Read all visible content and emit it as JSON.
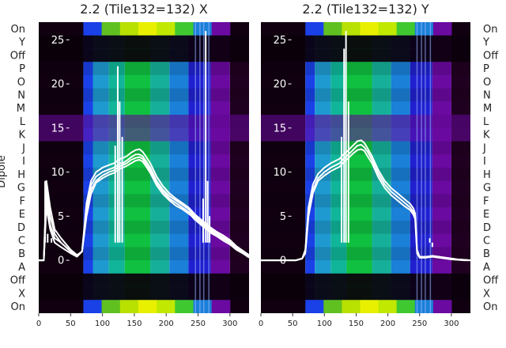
{
  "chart_data": {
    "type": "heatmap",
    "dipole_axis": {
      "label": "Dipole",
      "tick_labels": [
        "On",
        "Y",
        "Off",
        "P",
        "O",
        "N",
        "M",
        "L",
        "K",
        "J",
        "I",
        "H",
        "G",
        "F",
        "E",
        "D",
        "C",
        "B",
        "A",
        "Off",
        "X",
        "On"
      ]
    },
    "x_axis": {
      "range": [
        0,
        330
      ],
      "ticks": [
        0,
        50,
        100,
        150,
        200,
        250,
        300
      ]
    },
    "overlay_axis": {
      "range": [
        -6,
        27
      ],
      "ticks": [
        0,
        5,
        10,
        15,
        20,
        25
      ]
    },
    "panels": [
      {
        "title": "2.2 (Tile132=132) X",
        "overlay_series": [
          {
            "x": [
              0,
              8,
              12,
              18,
              25,
              35,
              50,
              60,
              68,
              75,
              82,
              90,
              100,
              110,
              118,
              124,
              128,
              132,
              138,
              145,
              152,
              158,
              163,
              168,
              175,
              185,
              195,
              205,
              215,
              225,
              235,
              240,
              245,
              250,
              255,
              258,
              262,
              265,
              270,
              280,
              290,
              300,
              310,
              320,
              330
            ],
            "y": [
              0,
              0,
              8,
              5,
              3,
              2,
              1,
              0.5,
              1,
              6,
              8.5,
              9.5,
              10,
              10.3,
              10.5,
              10.8,
              11,
              11,
              11.3,
              11.7,
              12,
              12,
              11.8,
              11.3,
              10.5,
              9,
              8,
              7.3,
              6.8,
              6.3,
              5.8,
              5.4,
              5,
              4.7,
              4.4,
              4.2,
              4,
              3.8,
              3.5,
              3,
              2.6,
              2.2,
              1.5,
              1,
              0.5
            ]
          },
          {
            "x": [
              0,
              8,
              12,
              18,
              25,
              35,
              50,
              60,
              68,
              75,
              82,
              90,
              100,
              110,
              118,
              124,
              128,
              132,
              138,
              145,
              152,
              158,
              163,
              168,
              175,
              185,
              195,
              205,
              215,
              225,
              235,
              240,
              245,
              250,
              255,
              258,
              262,
              265,
              270,
              280,
              290,
              300,
              310,
              320,
              330
            ],
            "y": [
              0,
              0,
              7,
              4,
              2.5,
              2,
              1,
              0.5,
              1,
              5.5,
              8,
              9,
              9.6,
              10,
              10.2,
              10.5,
              10.7,
              10.8,
              11,
              11.4,
              11.6,
              11.7,
              11.5,
              11,
              10.2,
              8.8,
              7.8,
              7,
              6.5,
              6,
              5.5,
              5.2,
              4.8,
              4.5,
              4.2,
              4,
              3.8,
              3.6,
              3.3,
              2.8,
              2.4,
              2,
              1.4,
              0.9,
              0.4
            ]
          },
          {
            "x": [
              0,
              8,
              12,
              18,
              25,
              35,
              50,
              60,
              68,
              75,
              82,
              90,
              100,
              110,
              118,
              124,
              128,
              132,
              138,
              145,
              152,
              158,
              163,
              168,
              175,
              185,
              195,
              205,
              215,
              225,
              235,
              240,
              245,
              250,
              255,
              258,
              262,
              265,
              270,
              280,
              290,
              300,
              310,
              320,
              330
            ],
            "y": [
              0,
              0,
              6,
              3.5,
              2,
              1.5,
              0.8,
              0.4,
              1,
              5,
              7.5,
              8.8,
              9.3,
              9.7,
              9.9,
              10.2,
              10.4,
              10.5,
              10.7,
              11,
              11.3,
              11.4,
              11.2,
              10.7,
              9.9,
              8.5,
              7.5,
              6.8,
              6.2,
              5.8,
              5.3,
              5,
              4.6,
              4.3,
              4,
              3.8,
              3.6,
              3.4,
              3.1,
              2.7,
              2.2,
              1.8,
              1.2,
              0.8,
              0.3
            ]
          },
          {
            "x": [
              0,
              8,
              12,
              18,
              25,
              35,
              50,
              60,
              68,
              75,
              82,
              90,
              100,
              110,
              118,
              124,
              128,
              132,
              138,
              145,
              152,
              158,
              163,
              168,
              175,
              185,
              195,
              205,
              215,
              225,
              235,
              240,
              245,
              250,
              255,
              258,
              262,
              265,
              270,
              280,
              290,
              300,
              310,
              320,
              330
            ],
            "y": [
              0,
              0,
              9,
              6,
              3.5,
              2.5,
              1.2,
              0.6,
              1,
              6.5,
              9,
              10,
              10.5,
              10.8,
              11,
              11.3,
              11.5,
              11.6,
              11.8,
              12.2,
              12.5,
              12.6,
              12.3,
              11.8,
              11,
              9.5,
              8.4,
              7.6,
              7,
              6.5,
              6,
              5.6,
              5.2,
              4.9,
              4.6,
              4.4,
              4.2,
              4,
              3.7,
              3.2,
              2.8,
              2.3,
              1.6,
              1.1,
              0.6
            ]
          }
        ],
        "spikes": [
          {
            "x": 120,
            "y": 13
          },
          {
            "x": 124,
            "y": 22
          },
          {
            "x": 127,
            "y": 18
          },
          {
            "x": 131,
            "y": 14
          },
          {
            "x": 10,
            "y": 9
          },
          {
            "x": 14,
            "y": 3
          },
          {
            "x": 20,
            "y": 2.5
          },
          {
            "x": 258,
            "y": 7
          },
          {
            "x": 262,
            "y": 26
          },
          {
            "x": 265,
            "y": 9
          },
          {
            "x": 268,
            "y": 5
          }
        ]
      },
      {
        "title": "2.2 (Tile132=132) Y",
        "overlay_series": [
          {
            "x": [
              0,
              20,
              40,
              55,
              65,
              70,
              75,
              82,
              90,
              100,
              110,
              118,
              124,
              130,
              138,
              145,
              152,
              158,
              163,
              168,
              175,
              185,
              195,
              205,
              215,
              225,
              235,
              240,
              243,
              246,
              250,
              260,
              270,
              280,
              290,
              300,
              310,
              320,
              330
            ],
            "y": [
              0,
              0,
              0,
              0,
              0.2,
              1,
              5.5,
              8,
              9.3,
              10,
              10.5,
              10.8,
              11,
              11.5,
              12,
              12.5,
              13,
              13.1,
              12.8,
              12.3,
              11.4,
              9.8,
              8.6,
              7.8,
              7.2,
              6.6,
              6,
              5.5,
              5,
              1,
              0.3,
              0.3,
              0.5,
              0.4,
              0.3,
              0.2,
              0.1,
              0.05,
              0
            ]
          },
          {
            "x": [
              0,
              20,
              40,
              55,
              65,
              70,
              75,
              82,
              90,
              100,
              110,
              118,
              124,
              130,
              138,
              145,
              152,
              158,
              163,
              168,
              175,
              185,
              195,
              205,
              215,
              225,
              235,
              240,
              243,
              246,
              250,
              260,
              270,
              280,
              290,
              300,
              310,
              320,
              330
            ],
            "y": [
              0,
              0,
              0,
              0,
              0.2,
              0.8,
              5,
              7.6,
              9,
              9.6,
              10.1,
              10.4,
              10.6,
              11.1,
              11.6,
              12.1,
              12.5,
              12.6,
              12.4,
              11.8,
              11,
              9.4,
              8.2,
              7.4,
              6.8,
              6.2,
              5.7,
              5.2,
              4.7,
              0.8,
              0.3,
              0.3,
              0.4,
              0.3,
              0.2,
              0.1,
              0.05,
              0,
              0
            ]
          },
          {
            "x": [
              0,
              20,
              40,
              55,
              65,
              70,
              75,
              82,
              90,
              100,
              110,
              118,
              124,
              130,
              138,
              145,
              152,
              158,
              163,
              168,
              175,
              185,
              195,
              205,
              215,
              225,
              235,
              240,
              243,
              246,
              250,
              260,
              270,
              280,
              290,
              300,
              310,
              320,
              330
            ],
            "y": [
              0,
              0,
              0,
              0,
              0.2,
              1.2,
              6,
              8.6,
              9.8,
              10.5,
              11,
              11.3,
              11.5,
              12,
              12.5,
              13,
              13.5,
              13.6,
              13.3,
              12.7,
              11.8,
              10.2,
              9,
              8.2,
              7.6,
              7,
              6.4,
              5.9,
              5.3,
              1.2,
              0.4,
              0.4,
              0.5,
              0.4,
              0.3,
              0.2,
              0.1,
              0.05,
              0
            ]
          }
        ],
        "spikes": [
          {
            "x": 127,
            "y": 14
          },
          {
            "x": 131,
            "y": 24
          },
          {
            "x": 134,
            "y": 26
          },
          {
            "x": 138,
            "y": 18
          },
          {
            "x": 266,
            "y": 2.5
          },
          {
            "x": 270,
            "y": 1.5
          }
        ]
      }
    ],
    "heatmap_bands": [
      {
        "x_start": 0,
        "x_end": 70,
        "color": "#100010"
      },
      {
        "x_start": 70,
        "x_end": 85,
        "color": "#1a40e8"
      },
      {
        "x_start": 85,
        "x_end": 110,
        "color": "#1e9ad0"
      },
      {
        "x_start": 110,
        "x_end": 135,
        "color": "#10b59a"
      },
      {
        "x_start": 135,
        "x_end": 175,
        "color": "#10c040"
      },
      {
        "x_start": 175,
        "x_end": 205,
        "color": "#16b09a"
      },
      {
        "x_start": 205,
        "x_end": 235,
        "color": "#1a80d8"
      },
      {
        "x_start": 235,
        "x_end": 270,
        "color": "#2020d0"
      },
      {
        "x_start": 270,
        "x_end": 300,
        "color": "#6a0aa0"
      },
      {
        "x_start": 300,
        "x_end": 330,
        "color": "#200020"
      }
    ],
    "hot_strip_colors": [
      "#1a40e8",
      "#60c020",
      "#b8e000",
      "#e8f000",
      "#c0e800",
      "#40c830",
      "#1a80d8",
      "#6a0aa0"
    ]
  }
}
